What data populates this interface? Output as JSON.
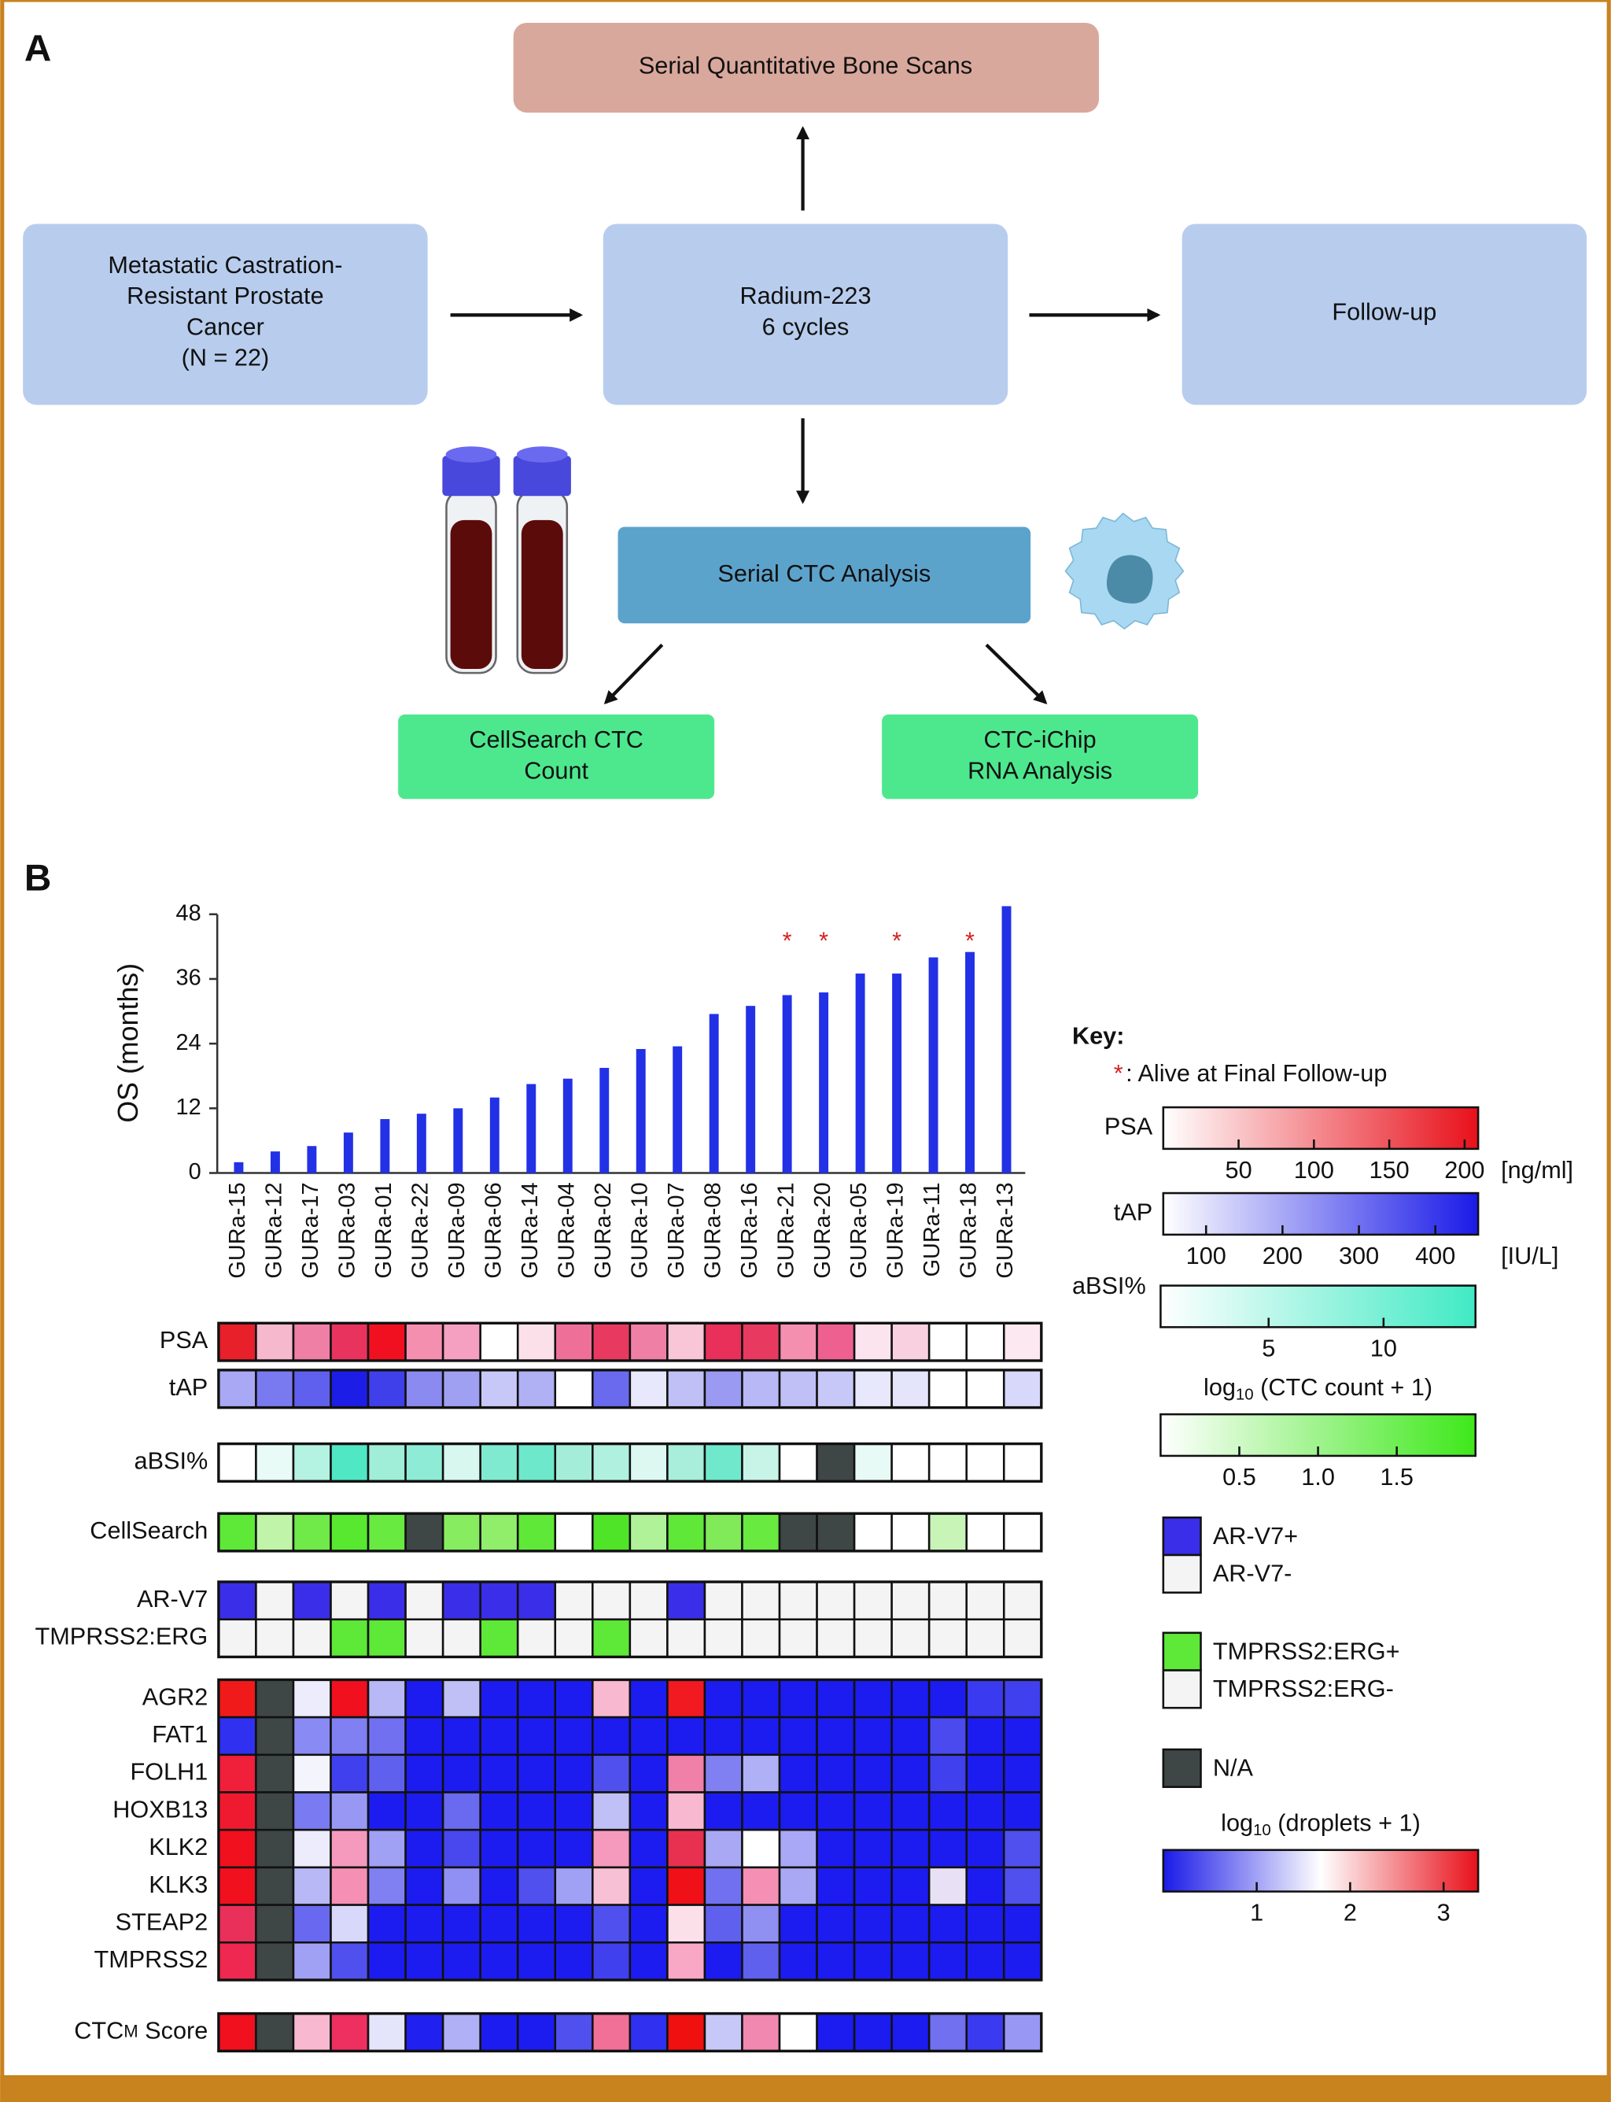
{
  "panel_a": {
    "label": "A",
    "bone_scans": "Serial Quantitative Bone Scans",
    "cohort": [
      "Metastatic Castration-",
      "Resistant Prostate",
      "Cancer",
      "(N = 22)"
    ],
    "treatment": [
      "Radium-223",
      "6 cycles"
    ],
    "follow_up": "Follow-up",
    "ctc_analysis": "Serial CTC Analysis",
    "cellsearch": [
      "CellSearch CTC",
      "Count"
    ],
    "ictchip": [
      "CTC-iChip",
      "RNA Analysis"
    ]
  },
  "chart_data": {
    "type": "bar",
    "panel_label": "B",
    "y_label": "OS (months)",
    "categories": [
      "GURa-15",
      "GURa-12",
      "GURa-17",
      "GURa-03",
      "GURa-01",
      "GURa-22",
      "GURa-09",
      "GURa-06",
      "GURa-14",
      "GURa-04",
      "GURa-02",
      "GURa-10",
      "GURa-07",
      "GURa-08",
      "GURa-16",
      "GURa-21",
      "GURa-20",
      "GURa-05",
      "GURa-19",
      "GURa-11",
      "GURa-18",
      "GURa-13"
    ],
    "values": [
      2,
      4,
      5,
      7.5,
      10,
      11,
      12,
      14,
      16.5,
      17.5,
      19.5,
      23,
      23.5,
      29.5,
      31,
      33,
      33.5,
      37,
      37,
      40,
      41,
      49.5
    ],
    "color": "#2231e6",
    "ylim": [
      0,
      48
    ],
    "yticks": [
      0,
      12,
      24,
      36,
      48
    ],
    "alive": [
      false,
      false,
      false,
      false,
      false,
      false,
      false,
      false,
      false,
      false,
      false,
      false,
      false,
      false,
      false,
      true,
      true,
      false,
      true,
      false,
      true,
      false
    ],
    "alive_marker": "*",
    "alive_color": "#d42020"
  },
  "heatmap": {
    "na_color": "#3f4646",
    "rows": [
      {
        "label": "PSA",
        "colors": [
          "#e8202a",
          "#f5b8cc",
          "#f07fa6",
          "#e8335e",
          "#f01020",
          "#f58fb0",
          "#f5a0c0",
          "#ffffff",
          "#fbe0ea",
          "#ee7099",
          "#e83a60",
          "#f07fa6",
          "#f8c6d6",
          "#e8305a",
          "#e83a60",
          "#f58fb0",
          "#ee6090",
          "#fbe4ee",
          "#f8d0e0",
          "#ffffff",
          "#ffffff",
          "#fbe8f0"
        ]
      },
      {
        "label": "tAP",
        "colors": [
          "#a8a8f4",
          "#7a7af0",
          "#6060ee",
          "#1d1de8",
          "#4040ea",
          "#8a8af0",
          "#a0a0f2",
          "#c8c8f8",
          "#b0b0f4",
          "#ffffff",
          "#6a6aee",
          "#e8e8fc",
          "#c0c0f6",
          "#9a9af2",
          "#b8b8f6",
          "#c0c0f6",
          "#c8c8f8",
          "#e8e8fc",
          "#e4e4fa",
          "#ffffff",
          "#ffffff",
          "#d8d8fa"
        ]
      },
      {
        "label": "aBSI%",
        "colors": [
          "#ffffff",
          "#e8fbf6",
          "#b4f2e2",
          "#50e8c4",
          "#a0eed8",
          "#8eecd6",
          "#d8f8ef",
          "#80ead0",
          "#6ee8ca",
          "#a4eed9",
          "#b0f0df",
          "#dcf8f0",
          "#a8eedb",
          "#70e8cb",
          "#c8f4e8",
          "#ffffff",
          "#3f4646",
          "#e8faf5",
          "#ffffff",
          "#ffffff",
          "#ffffff",
          "#ffffff"
        ]
      },
      {
        "label": "CellSearch",
        "colors": [
          "#5ee838",
          "#c0f4a8",
          "#70ea48",
          "#58e830",
          "#68ea40",
          "#3f4646",
          "#88ec60",
          "#90ee6a",
          "#60e838",
          "#ffffff",
          "#50e428",
          "#b0f298",
          "#60e838",
          "#80ea58",
          "#68ea40",
          "#3f4646",
          "#3f4646",
          "#ffffff",
          "#ffffff",
          "#c8f4b8",
          "#ffffff",
          "#ffffff"
        ]
      },
      {
        "label": "AR-V7",
        "colors": [
          "#3a2ee8",
          "#f4f4f4",
          "#3a2ee8",
          "#f4f4f4",
          "#3a2ee8",
          "#f4f4f4",
          "#3a2ee8",
          "#3a2ee8",
          "#3a2ee8",
          "#f4f4f4",
          "#f4f4f4",
          "#f4f4f4",
          "#3a2ee8",
          "#f4f4f4",
          "#f4f4f4",
          "#f4f4f4",
          "#f4f4f4",
          "#f4f4f4",
          "#f4f4f4",
          "#f4f4f4",
          "#f4f4f4",
          "#f4f4f4"
        ]
      },
      {
        "label": "TMPRSS2:ERG",
        "colors": [
          "#f4f4f4",
          "#f4f4f4",
          "#f4f4f4",
          "#5ee838",
          "#5ee838",
          "#f4f4f4",
          "#f4f4f4",
          "#5ee838",
          "#f4f4f4",
          "#f4f4f4",
          "#5ee838",
          "#f4f4f4",
          "#f4f4f4",
          "#f4f4f4",
          "#f4f4f4",
          "#f4f4f4",
          "#f4f4f4",
          "#f4f4f4",
          "#f4f4f4",
          "#f4f4f4",
          "#f4f4f4",
          "#f4f4f4"
        ]
      },
      {
        "label": "AGR2",
        "colors": [
          "#f01a1a",
          "#3f4646",
          "#ececfc",
          "#f0101e",
          "#b8b8f6",
          "#1c1cf0",
          "#c0c0f6",
          "#1c1cf0",
          "#1c1cf0",
          "#1c1cf0",
          "#f8b8d0",
          "#1c1cf0",
          "#f01a20",
          "#1c1cf0",
          "#1c1cf0",
          "#1c1cf0",
          "#1c1cf0",
          "#1c1cf0",
          "#1c1cf0",
          "#1c1cf0",
          "#3a3af0",
          "#4040ee"
        ]
      },
      {
        "label": "FAT1",
        "colors": [
          "#3030f0",
          "#3f4646",
          "#8a8af4",
          "#8080f2",
          "#7070f0",
          "#1c1cf0",
          "#1c1cf0",
          "#1c1cf0",
          "#1c1cf0",
          "#1c1cf0",
          "#1c1cf0",
          "#1c1cf0",
          "#1c1cf0",
          "#1c1cf0",
          "#1c1cf0",
          "#1c1cf0",
          "#1c1cf0",
          "#1c1cf0",
          "#1c1cf0",
          "#4a4aee",
          "#1c1cf0",
          "#1c1cf0"
        ]
      },
      {
        "label": "FOLH1",
        "colors": [
          "#f0203a",
          "#3f4646",
          "#f4f4fc",
          "#4040ee",
          "#6060ee",
          "#1c1cf0",
          "#1c1cf0",
          "#1c1cf0",
          "#1c1cf0",
          "#1c1cf0",
          "#5050ee",
          "#1c1cf0",
          "#f080a8",
          "#8080f2",
          "#b0b0f6",
          "#1c1cf0",
          "#1c1cf0",
          "#1c1cf0",
          "#1c1cf0",
          "#4040ee",
          "#1c1cf0",
          "#1c1cf0"
        ]
      },
      {
        "label": "HOXB13",
        "colors": [
          "#f01a30",
          "#3f4646",
          "#7a7af2",
          "#9898f4",
          "#1c1cf0",
          "#1c1cf0",
          "#6a6af0",
          "#1c1cf0",
          "#1c1cf0",
          "#1c1cf0",
          "#c0c0f6",
          "#1c1cf0",
          "#f8b8d0",
          "#1c1cf0",
          "#1c1cf0",
          "#1c1cf0",
          "#1c1cf0",
          "#1c1cf0",
          "#1c1cf0",
          "#1c1cf0",
          "#1c1cf0",
          "#1c1cf0"
        ]
      },
      {
        "label": "KLK2",
        "colors": [
          "#f0101e",
          "#3f4646",
          "#ececfc",
          "#f59abc",
          "#a0a0f4",
          "#1c1cf0",
          "#4848ee",
          "#1c1cf0",
          "#1c1cf0",
          "#1c1cf0",
          "#f59abc",
          "#1c1cf0",
          "#e83050",
          "#a8a8f4",
          "#ffffff",
          "#a8a8f6",
          "#1c1cf0",
          "#1c1cf0",
          "#1c1cf0",
          "#1c1cf0",
          "#1c1cf0",
          "#5050ee"
        ]
      },
      {
        "label": "KLK3",
        "colors": [
          "#f0101e",
          "#3f4646",
          "#b8b8f6",
          "#f590b4",
          "#8080f2",
          "#1c1cf0",
          "#9090f4",
          "#1c1cf0",
          "#5050ee",
          "#a0a0f4",
          "#f8c0d4",
          "#1c1cf0",
          "#f01018",
          "#7070f0",
          "#f590b4",
          "#a8a8f4",
          "#1c1cf0",
          "#1c1cf0",
          "#1c1cf0",
          "#e8e0f4",
          "#1c1cf0",
          "#5050ee"
        ]
      },
      {
        "label": "STEAP2",
        "colors": [
          "#e8305a",
          "#3f4646",
          "#6868f0",
          "#d8d8fa",
          "#1c1cf0",
          "#1c1cf0",
          "#1c1cf0",
          "#1c1cf0",
          "#1c1cf0",
          "#1c1cf0",
          "#5050ee",
          "#1c1cf0",
          "#fbe0ea",
          "#6060ee",
          "#9090f2",
          "#1c1cf0",
          "#1c1cf0",
          "#1c1cf0",
          "#1c1cf0",
          "#1c1cf0",
          "#1c1cf0",
          "#1c1cf0"
        ]
      },
      {
        "label": "TMPRSS2",
        "colors": [
          "#ee2850",
          "#3f4646",
          "#a0a0f4",
          "#5050ee",
          "#1c1cf0",
          "#1c1cf0",
          "#1c1cf0",
          "#1c1cf0",
          "#1c1cf0",
          "#1c1cf0",
          "#4040ee",
          "#1c1cf0",
          "#f8a8c4",
          "#1c1cf0",
          "#6060ee",
          "#1c1cf0",
          "#1c1cf0",
          "#1c1cf0",
          "#1c1cf0",
          "#1c1cf0",
          "#1c1cf0",
          "#1c1cf0"
        ]
      },
      {
        "label": "CTC",
        "label_sub": "M",
        "label_rest": " Score",
        "colors": [
          "#f0101e",
          "#3f4646",
          "#f8b8d0",
          "#ee3060",
          "#e4e4fa",
          "#2020f0",
          "#b0b0f6",
          "#1c1cf0",
          "#1c1cf0",
          "#5050ee",
          "#f07098",
          "#3030f0",
          "#f01010",
          "#c8c8f8",
          "#f088b0",
          "#ffffff",
          "#1c1cf0",
          "#1c1cf0",
          "#1c1cf0",
          "#7070f0",
          "#3a3af0",
          "#9898f4"
        ]
      }
    ]
  },
  "key": {
    "title": "Key:",
    "alive_text": ": Alive at Final Follow-up",
    "scales": [
      {
        "label": "PSA",
        "colors": [
          "#ffffff",
          "#e8101a"
        ],
        "range": [
          0,
          209
        ],
        "ticks": [
          50,
          100,
          150,
          200
        ],
        "unit": "[ng/ml]"
      },
      {
        "label": "tAP",
        "colors": [
          "#ffffff",
          "#1a1ae8"
        ],
        "range": [
          44,
          456
        ],
        "ticks": [
          100,
          200,
          300,
          400
        ],
        "unit": "[IU/L]"
      },
      {
        "label": "aBSI%",
        "colors": [
          "#ffffff",
          "#40eac4"
        ],
        "range": [
          0.3,
          14
        ],
        "ticks": [
          5,
          10
        ]
      },
      {
        "title_prefix": "log",
        "title_sub": "10",
        "title_rest": " (CTC count + 1)",
        "colors": [
          "#ffffff",
          "#3ee81a"
        ],
        "range": [
          0,
          2
        ],
        "ticks": [
          0.5,
          {
            "value": 1,
            "label": "1.0"
          },
          1.5
        ]
      },
      {
        "title_prefix": "log",
        "title_sub": "10",
        "title_rest": " (droplets + 1)",
        "colors": [
          "#1a1ae8",
          "#ffffff",
          "#e8101a"
        ],
        "range": [
          0,
          3.37
        ],
        "ticks": [
          1,
          2,
          3
        ]
      }
    ],
    "legend": [
      {
        "label": "AR-V7+",
        "color": "#3a2ee8"
      },
      {
        "label": "AR-V7-",
        "color": "#f4f4f4"
      },
      {
        "label": "TMPRSS2:ERG+",
        "color": "#5ee838"
      },
      {
        "label": "TMPRSS2:ERG-",
        "color": "#f4f4f4"
      },
      {
        "label": "N/A",
        "color": "#3f4646"
      }
    ]
  }
}
